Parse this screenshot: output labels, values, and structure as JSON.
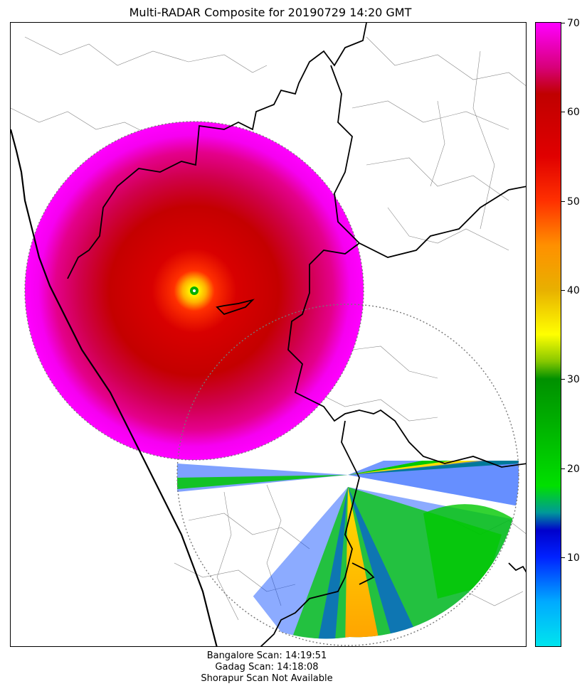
{
  "title": "Multi-RADAR Composite for 20190729 14:20 GMT",
  "colorbar": {
    "min": 0,
    "max": 70,
    "ticks": [
      "70",
      "60",
      "50",
      "40",
      "30",
      "20",
      "10"
    ],
    "tick_values": [
      70,
      60,
      50,
      40,
      30,
      20,
      10
    ],
    "stops": [
      {
        "value": 0,
        "color": "#00e5ee"
      },
      {
        "value": 5,
        "color": "#00aaff"
      },
      {
        "value": 10,
        "color": "#0022ff"
      },
      {
        "value": 13,
        "color": "#0000cc"
      },
      {
        "value": 15,
        "color": "#009999"
      },
      {
        "value": 18,
        "color": "#00e000"
      },
      {
        "value": 25,
        "color": "#00b000"
      },
      {
        "value": 30,
        "color": "#009000"
      },
      {
        "value": 32,
        "color": "#88c800"
      },
      {
        "value": 35,
        "color": "#ffff00"
      },
      {
        "value": 40,
        "color": "#e8b000"
      },
      {
        "value": 45,
        "color": "#ff9000"
      },
      {
        "value": 50,
        "color": "#ff3000"
      },
      {
        "value": 55,
        "color": "#e00000"
      },
      {
        "value": 62,
        "color": "#c00000"
      },
      {
        "value": 65,
        "color": "#d8007a"
      },
      {
        "value": 70,
        "color": "#ff00ff"
      }
    ]
  },
  "footer": {
    "line1": "Bangalore Scan: 14:19:51",
    "line2": "Gadag Scan: 14:18:08",
    "line3": "Shorapur Scan Not Available"
  }
}
